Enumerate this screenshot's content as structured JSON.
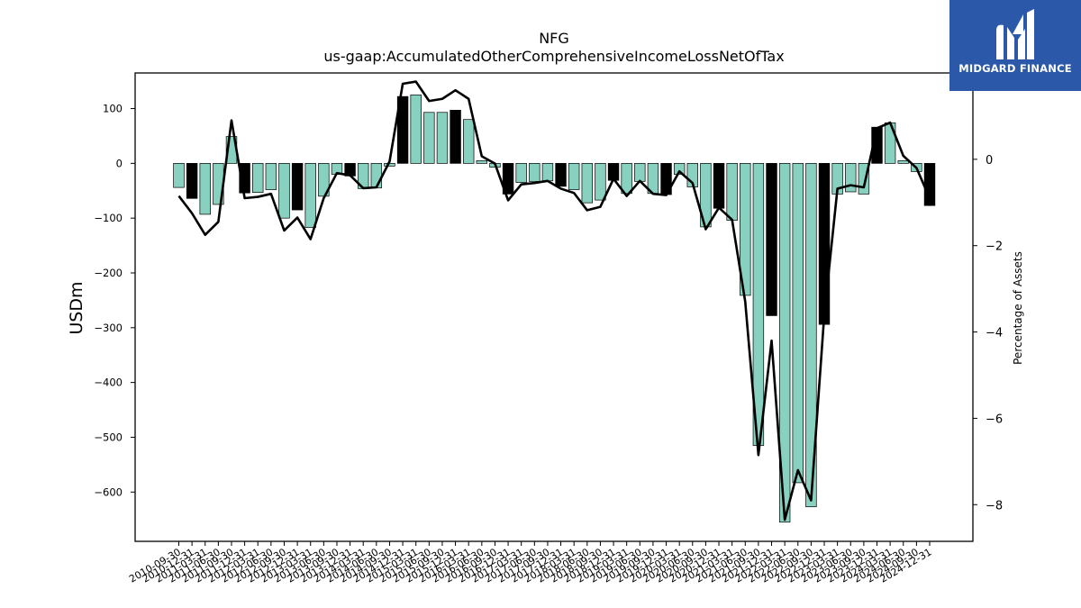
{
  "brand": {
    "name": "MIDGARD FINANCE",
    "color": "#2b58a8"
  },
  "chart_data": {
    "type": "bar",
    "title": "NFG",
    "subtitle": "us-gaap:AccumulatedOtherComprehensiveIncomeLossNetOfTax",
    "ylabel": "USDm",
    "y2label": "Percentage of Assets",
    "ylim": [
      -690,
      165
    ],
    "y2lim": [
      -8.85,
      2.0
    ],
    "yticks": [
      100,
      0,
      -100,
      -200,
      -300,
      -400,
      -500,
      -600
    ],
    "y2ticks": [
      0,
      -2,
      -4,
      -6,
      -8
    ],
    "bar_colors": {
      "annual": "#000000",
      "quarterly": "#88d1c0"
    },
    "line_color": "#000000",
    "categories": [
      "2010-09-30",
      "2010-12-31",
      "2011-03-31",
      "2011-06-30",
      "2011-09-30",
      "2011-12-31",
      "2012-03-31",
      "2012-06-30",
      "2012-09-30",
      "2012-12-31",
      "2013-03-31",
      "2013-06-30",
      "2013-09-30",
      "2013-12-31",
      "2014-03-31",
      "2014-06-30",
      "2014-09-30",
      "2014-12-31",
      "2015-03-31",
      "2015-06-30",
      "2015-09-30",
      "2015-12-31",
      "2016-03-31",
      "2016-06-30",
      "2016-09-30",
      "2016-12-31",
      "2017-03-31",
      "2017-06-30",
      "2017-09-30",
      "2017-12-31",
      "2018-03-31",
      "2018-06-30",
      "2018-09-30",
      "2018-12-31",
      "2019-03-31",
      "2019-06-30",
      "2019-09-30",
      "2019-12-31",
      "2020-03-31",
      "2020-06-30",
      "2020-09-30",
      "2020-12-31",
      "2021-03-31",
      "2021-06-30",
      "2021-09-30",
      "2021-12-31",
      "2022-03-31",
      "2022-06-30",
      "2022-09-30",
      "2022-12-31",
      "2023-03-31",
      "2023-06-30",
      "2023-09-30",
      "2023-12-31",
      "2024-03-31",
      "2024-06-30",
      "2024-09-30",
      "2024-12-31"
    ],
    "values": [
      -44,
      -64,
      -93,
      -75,
      49,
      -54,
      -53,
      -48,
      -100,
      -85,
      -117,
      -60,
      -20,
      -23,
      -46,
      -45,
      -5,
      122,
      125,
      93,
      93,
      97,
      80,
      5,
      -7,
      -56,
      -35,
      -33,
      -32,
      -42,
      -48,
      -72,
      -67,
      -31,
      -55,
      -33,
      -55,
      -57,
      -20,
      -43,
      -116,
      -82,
      -104,
      -241,
      -515,
      -278,
      -655,
      -583,
      -627,
      -294,
      -56,
      -52,
      -56,
      66,
      74,
      5,
      -15,
      -77
    ],
    "annual": [
      false,
      true,
      false,
      false,
      false,
      true,
      false,
      false,
      false,
      true,
      false,
      false,
      false,
      true,
      false,
      false,
      false,
      true,
      false,
      false,
      false,
      true,
      false,
      false,
      false,
      true,
      false,
      false,
      false,
      true,
      false,
      false,
      false,
      true,
      false,
      false,
      false,
      true,
      false,
      false,
      false,
      true,
      false,
      false,
      false,
      true,
      false,
      false,
      false,
      true,
      false,
      false,
      false,
      true,
      false,
      false,
      false,
      true
    ],
    "pct_assets": [
      -0.85,
      -1.25,
      -1.75,
      -1.45,
      0.9,
      -0.9,
      -0.87,
      -0.8,
      -1.65,
      -1.35,
      -1.85,
      -0.9,
      -0.32,
      -0.37,
      -0.67,
      -0.65,
      -0.05,
      1.75,
      1.8,
      1.35,
      1.4,
      1.6,
      1.4,
      0.07,
      -0.1,
      -0.95,
      -0.58,
      -0.55,
      -0.5,
      -0.68,
      -0.78,
      -1.18,
      -1.1,
      -0.45,
      -0.85,
      -0.5,
      -0.8,
      -0.83,
      -0.28,
      -0.55,
      -1.62,
      -1.12,
      -1.4,
      -3.3,
      -6.85,
      -4.2,
      -8.35,
      -7.2,
      -7.9,
      -3.6,
      -0.68,
      -0.6,
      -0.65,
      0.72,
      0.85,
      0.08,
      -0.2,
      -0.9
    ]
  }
}
